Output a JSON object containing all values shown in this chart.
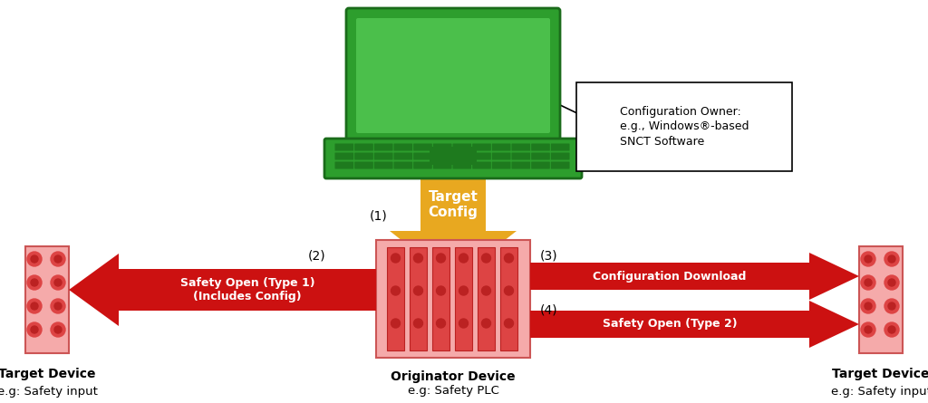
{
  "bg_color": "#ffffff",
  "laptop_body_color": "#2d9e2d",
  "laptop_screen_color": "#4bbf4b",
  "laptop_keyboard_color": "#1e7a1e",
  "arrow_down_color": "#e8a820",
  "arrow_red_color": "#cc1111",
  "device_body_color": "#f5aaaa",
  "device_slot_color": "#dd4444",
  "device_slot_dark": "#bb2222",
  "callout_box_text": "Configuration Owner:\ne.g., Windows®-based\nSNCT Software",
  "label_target_config": "Target\nConfig",
  "label_1": "(1)",
  "label_2": "(2)",
  "label_3": "(3)",
  "label_4": "(4)",
  "arrow2_text": "Safety Open (Type 1)\n(Includes Config)",
  "arrow3_text": "Configuration Download",
  "arrow4_text": "Safety Open (Type 2)",
  "originator_label1": "Originator Device",
  "originator_label2": "e.g: Safety PLC",
  "target_left_label1": "Target Device",
  "target_left_label2": "e.g: Safety input",
  "target_right_label1": "Target Device",
  "target_right_label2": "e.g: Safety input"
}
